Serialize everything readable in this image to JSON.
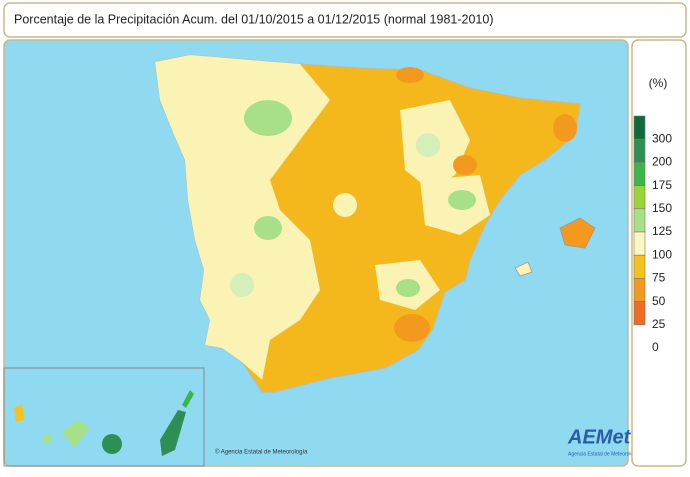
{
  "header": {
    "title": "Porcentaje de la Precipitación Acum. del 01/10/2015 a  01/12/2015  (normal 1981-2010)"
  },
  "legend": {
    "unit": "(%)",
    "ticks": [
      300,
      200,
      175,
      150,
      125,
      100,
      75,
      50,
      25,
      0
    ],
    "colors": [
      "#0f6b3c",
      "#2e8f55",
      "#3cb54a",
      "#98d43a",
      "#a8e08a",
      "#fbf7c0",
      "#f5c21c",
      "#f39a1e",
      "#f06a2a",
      "#ffffff"
    ]
  },
  "map": {
    "credit": "© Agencia Estatal de Meteorología",
    "logo": "AEMet",
    "logo_subtitle": "Agencia Estatal de Meteorología"
  }
}
